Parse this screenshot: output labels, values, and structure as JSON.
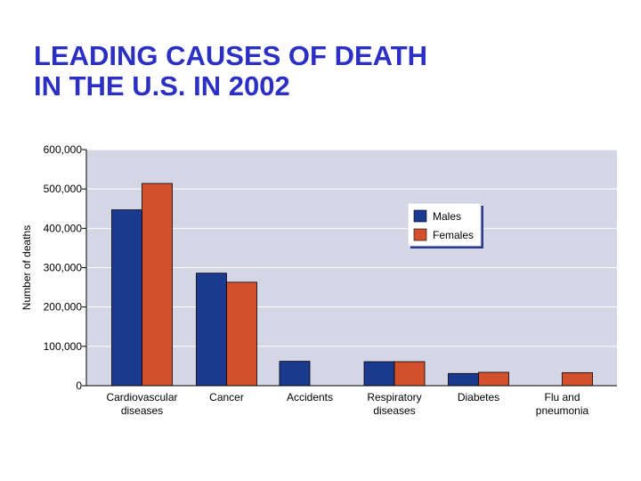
{
  "title_line1": "LEADING CAUSES OF DEATH",
  "title_line2": "IN THE U.S. IN 2002",
  "chart_data": {
    "type": "bar",
    "ylabel": "Number of deaths",
    "ylim": [
      0,
      600000
    ],
    "yticks": [
      "0",
      "100,000",
      "200,000",
      "300,000",
      "400,000",
      "500,000",
      "600,000"
    ],
    "grid": true,
    "legend_position": "top-right",
    "categories": [
      [
        "Cardiovascular",
        "diseases"
      ],
      [
        "Cancer"
      ],
      [
        "Accidents"
      ],
      [
        "Respiratory",
        "diseases"
      ],
      [
        "Diabetes"
      ],
      [
        "Flu and",
        "pneumonia"
      ]
    ],
    "series": [
      {
        "name": "Males",
        "color": "#1b3a8f",
        "values": [
          447000,
          286000,
          62000,
          61000,
          31000,
          null
        ]
      },
      {
        "name": "Females",
        "color": "#d3502d",
        "values": [
          514000,
          263000,
          null,
          61000,
          34000,
          33000
        ]
      }
    ],
    "plot_bg": "#d4d6e5"
  }
}
